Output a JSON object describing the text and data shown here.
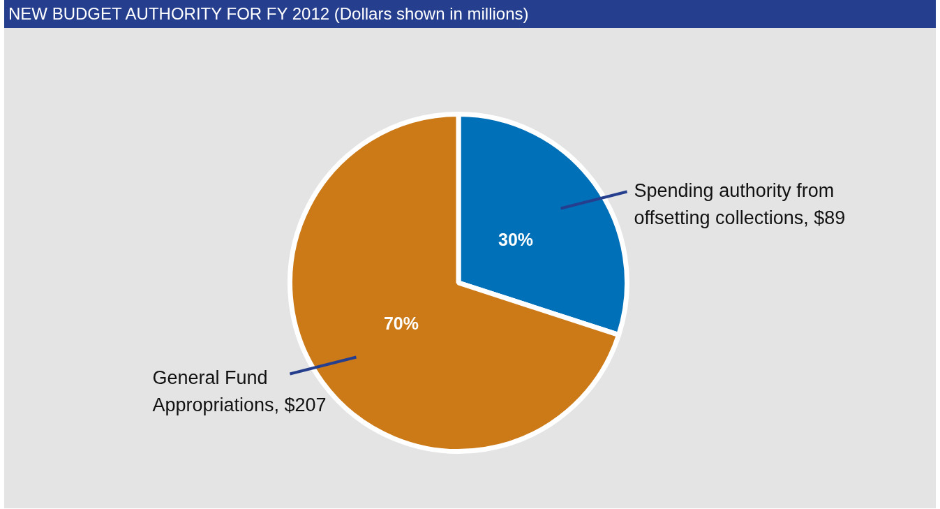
{
  "chart_data": {
    "type": "pie",
    "title": "NEW BUDGET AUTHORITY FOR FY 2012 (Dollars shown in millions)",
    "categories": [
      "Spending authority from offsetting collections, $89",
      "General Fund Appropriations, $207"
    ],
    "values": [
      30,
      70
    ],
    "value_labels": [
      "30%",
      "70%"
    ],
    "colors": [
      "#0070b8",
      "#cc7a17"
    ],
    "legend": false
  }
}
